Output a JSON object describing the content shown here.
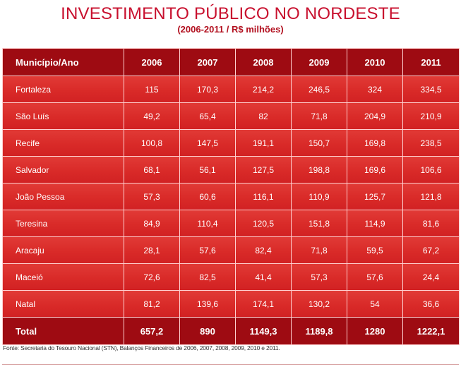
{
  "chart_data": {
    "type": "table",
    "title": "INVESTIMENTO PÚBLICO NO NORDESTE",
    "subtitle": "(2006-2011 / R$ milhões)",
    "header_label": "Município/Ano",
    "years": [
      "2006",
      "2007",
      "2008",
      "2009",
      "2010",
      "2011"
    ],
    "rows": [
      {
        "municipio": "Fortaleza",
        "values": [
          "115",
          "170,3",
          "214,2",
          "246,5",
          "324",
          "334,5"
        ]
      },
      {
        "municipio": "São Luís",
        "values": [
          "49,2",
          "65,4",
          "82",
          "71,8",
          "204,9",
          "210,9"
        ]
      },
      {
        "municipio": "Recife",
        "values": [
          "100,8",
          "147,5",
          "191,1",
          "150,7",
          "169,8",
          "238,5"
        ]
      },
      {
        "municipio": "Salvador",
        "values": [
          "68,1",
          "56,1",
          "127,5",
          "198,8",
          "169,6",
          "106,6"
        ]
      },
      {
        "municipio": "João Pessoa",
        "values": [
          "57,3",
          "60,6",
          "116,1",
          "110,9",
          "125,7",
          "121,8"
        ]
      },
      {
        "municipio": "Teresina",
        "values": [
          "84,9",
          "110,4",
          "120,5",
          "151,8",
          "114,9",
          "81,6"
        ]
      },
      {
        "municipio": "Aracaju",
        "values": [
          "28,1",
          "57,6",
          "82,4",
          "71,8",
          "59,5",
          "67,2"
        ]
      },
      {
        "municipio": "Maceió",
        "values": [
          "72,6",
          "82,5",
          "41,4",
          "57,3",
          "57,6",
          "24,4"
        ]
      },
      {
        "municipio": "Natal",
        "values": [
          "81,2",
          "139,6",
          "174,1",
          "130,2",
          "54",
          "36,6"
        ]
      }
    ],
    "total": {
      "label": "Total",
      "values": [
        "657,2",
        "890",
        "1149,3",
        "1189,8",
        "1280",
        "1222,1"
      ]
    },
    "source": "Fonte: Secretaria do Tesouro Nacional (STN), Balanços Financeiros de 2006, 2007, 2008, 2009, 2010 e 2011."
  },
  "colors": {
    "title": "#c8102e",
    "header_bg": "#9e0b12",
    "body_bg": "#d92a28",
    "cell_border": "#ffd0d0"
  }
}
